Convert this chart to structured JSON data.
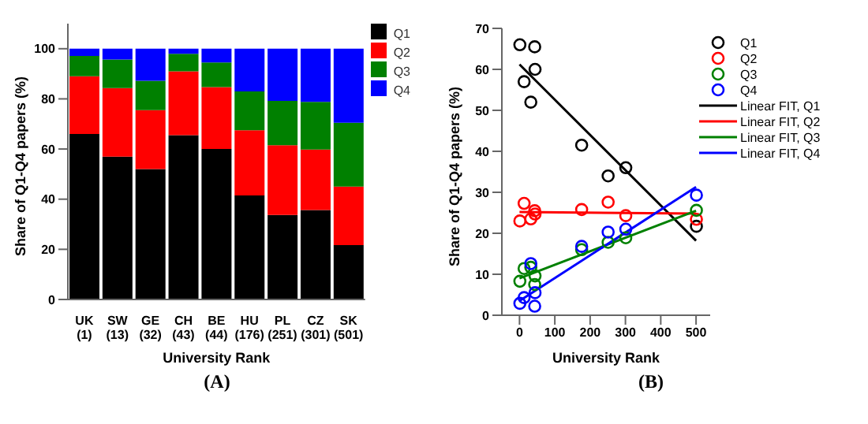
{
  "chart_data": [
    {
      "type": "bar",
      "stacked": true,
      "ylabel": "Share of Q1-Q4 papers (%)",
      "xlabel": "University Rank",
      "annotations": [
        "(A)"
      ],
      "categories": [
        "UK (1)",
        "SW (13)",
        "GE (32)",
        "CH (43)",
        "BE (44)",
        "HU (176)",
        "PL (251)",
        "CZ (301)",
        "SK (501)"
      ],
      "ylim": [
        0,
        110
      ],
      "yticks": [
        0,
        20,
        40,
        60,
        80,
        100
      ],
      "legend": "top right",
      "series": [
        {
          "name": "Q1",
          "color": "#000000",
          "values": [
            66,
            57,
            52,
            65.5,
            60,
            41.5,
            33.7,
            35.7,
            21.7
          ]
        },
        {
          "name": "Q2",
          "color": "#ff0000",
          "values": [
            23,
            27.3,
            23.5,
            25.5,
            24.7,
            26,
            27.8,
            24.1,
            23.3
          ]
        },
        {
          "name": "Q3",
          "color": "#008000",
          "values": [
            8.1,
            11.4,
            11.7,
            7,
            9.8,
            15.5,
            17.7,
            19,
            25.5
          ]
        },
        {
          "name": "Q4",
          "color": "#0000ff",
          "values": [
            2.9,
            4.3,
            12.8,
            2,
            5.5,
            17,
            20.8,
            21.2,
            29.5
          ]
        }
      ]
    },
    {
      "type": "scatter",
      "ylabel": "Share of Q1-Q4 papers (%)",
      "xlabel": "University Rank",
      "annotations": [
        "(B)"
      ],
      "xlim": [
        -50,
        540
      ],
      "xticks": [
        0,
        100,
        200,
        300,
        400,
        500
      ],
      "ylim": [
        0,
        70
      ],
      "yticks": [
        0,
        10,
        20,
        30,
        40,
        50,
        60,
        70
      ],
      "legend": "top right",
      "series": [
        {
          "name": "Q1",
          "type": "scatter",
          "marker": "circle",
          "color": "#000000",
          "x": [
            1,
            13,
            32,
            43,
            44,
            176,
            251,
            301,
            501
          ],
          "values": [
            66,
            57,
            52,
            65.5,
            60,
            41.5,
            34,
            36,
            21.7
          ]
        },
        {
          "name": "Q2",
          "type": "scatter",
          "marker": "circle",
          "color": "#ff0000",
          "x": [
            1,
            13,
            32,
            43,
            44,
            176,
            251,
            301,
            501
          ],
          "values": [
            23,
            27.3,
            23.5,
            25.5,
            24.7,
            25.8,
            27.6,
            24.3,
            23.4
          ]
        },
        {
          "name": "Q3",
          "type": "scatter",
          "marker": "circle",
          "color": "#008000",
          "x": [
            1,
            13,
            32,
            43,
            44,
            176,
            251,
            301,
            501
          ],
          "values": [
            8.3,
            11.4,
            11.7,
            7.5,
            9.6,
            16,
            17.8,
            18.9,
            25.6
          ]
        },
        {
          "name": "Q4",
          "type": "scatter",
          "marker": "circle",
          "color": "#0000ff",
          "x": [
            1,
            13,
            32,
            43,
            44,
            176,
            251,
            301,
            501
          ],
          "values": [
            2.9,
            4.3,
            12.6,
            2.2,
            5.5,
            16.8,
            20.3,
            21,
            29.3
          ]
        },
        {
          "name": "Linear FIT, Q1",
          "type": "line",
          "color": "#000000",
          "x": [
            0,
            500
          ],
          "values": [
            61.2,
            18.2
          ]
        },
        {
          "name": "Linear FIT, Q2",
          "type": "line",
          "color": "#ff0000",
          "x": [
            0,
            500
          ],
          "values": [
            25.2,
            24.8
          ]
        },
        {
          "name": "Linear FIT, Q3",
          "type": "line",
          "color": "#008000",
          "x": [
            0,
            500
          ],
          "values": [
            9,
            25.5
          ]
        },
        {
          "name": "Linear FIT, Q4",
          "type": "line",
          "color": "#0000ff",
          "x": [
            0,
            500
          ],
          "values": [
            3.5,
            31.3
          ]
        }
      ]
    }
  ]
}
